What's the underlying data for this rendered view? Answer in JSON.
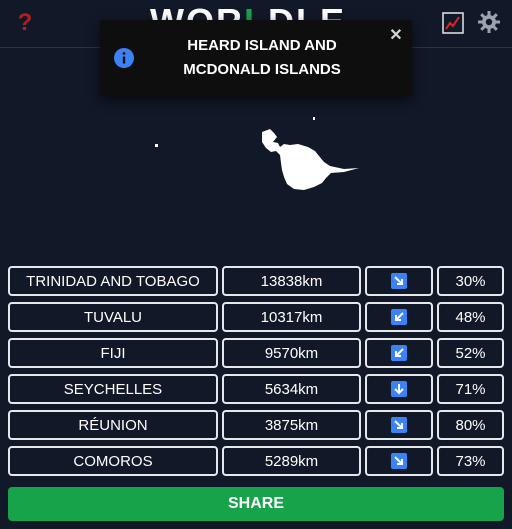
{
  "header": {
    "logo_part1": "WOR",
    "logo_part2": "L",
    "logo_part3": "DLE",
    "help_glyph": "?",
    "icons": [
      "help-icon",
      "stats-icon",
      "gear-icon"
    ]
  },
  "toast": {
    "message": "HEARD ISLAND AND MCDONALD ISLANDS",
    "close_glyph": "✕",
    "icon": "info-icon"
  },
  "guesses": [
    {
      "country": "TRINIDAD AND TOBAGO",
      "distance": "13838km",
      "direction": "south-east",
      "proximity": "30%"
    },
    {
      "country": "TUVALU",
      "distance": "10317km",
      "direction": "south-west",
      "proximity": "48%"
    },
    {
      "country": "FIJI",
      "distance": "9570km",
      "direction": "south-west",
      "proximity": "52%"
    },
    {
      "country": "SEYCHELLES",
      "distance": "5634km",
      "direction": "south",
      "proximity": "71%"
    },
    {
      "country": "RÉUNION",
      "distance": "3875km",
      "direction": "south-east",
      "proximity": "80%"
    },
    {
      "country": "COMOROS",
      "distance": "5289km",
      "direction": "south-east",
      "proximity": "73%"
    }
  ],
  "share_label": "SHARE",
  "colors": {
    "background": "#111827",
    "accent_green": "#16a34a",
    "help_red": "#b91c1c",
    "arrow_blue": "#3b82f6"
  }
}
